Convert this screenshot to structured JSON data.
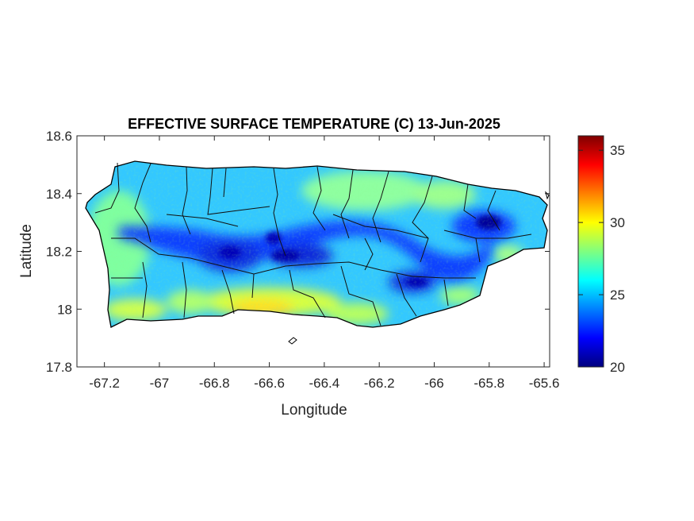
{
  "title": "EFFECTIVE SURFACE TEMPERATURE (C) 13-Jun-2025",
  "xlabel": "Longitude",
  "ylabel": "Latitude",
  "x_ticks": [
    "-67.2",
    "-67",
    "-66.8",
    "-66.6",
    "-66.4",
    "-66.2",
    "-66",
    "-65.8",
    "-65.6"
  ],
  "y_ticks": [
    "18.6",
    "18.4",
    "18.2",
    "18",
    "17.8"
  ],
  "colorbar": {
    "ticks": [
      "35",
      "30",
      "25",
      "20"
    ],
    "range": [
      20,
      36
    ],
    "colormap": "jet"
  },
  "chart_data": {
    "type": "heatmap",
    "title": "EFFECTIVE SURFACE TEMPERATURE (C) 13-Jun-2025",
    "xlabel": "Longitude",
    "ylabel": "Latitude",
    "xlim": [
      -67.3,
      -65.58
    ],
    "ylim": [
      17.8,
      18.6
    ],
    "color_range": [
      20,
      36
    ],
    "colorbar_ticks": [
      20,
      25,
      30,
      35
    ],
    "colormap": "jet",
    "units": "C",
    "region": "Puerto Rico municipalities",
    "cool_zones": [
      {
        "lon": -65.8,
        "lat": 18.29,
        "value": 20.5
      },
      {
        "lon": -66.55,
        "lat": 18.17,
        "value": 21.5
      },
      {
        "lon": -66.78,
        "lat": 18.2,
        "value": 22
      },
      {
        "lon": -66.08,
        "lat": 18.1,
        "value": 22
      },
      {
        "lon": -66.35,
        "lat": 18.22,
        "value": 22.5
      }
    ],
    "warm_zones": [
      {
        "lon": -66.55,
        "lat": 18.01,
        "value": 30
      },
      {
        "lon": -67.15,
        "lat": 17.99,
        "value": 29
      },
      {
        "lon": -66.2,
        "lat": 17.98,
        "value": 28.5
      }
    ],
    "typical_value": 26.5
  }
}
